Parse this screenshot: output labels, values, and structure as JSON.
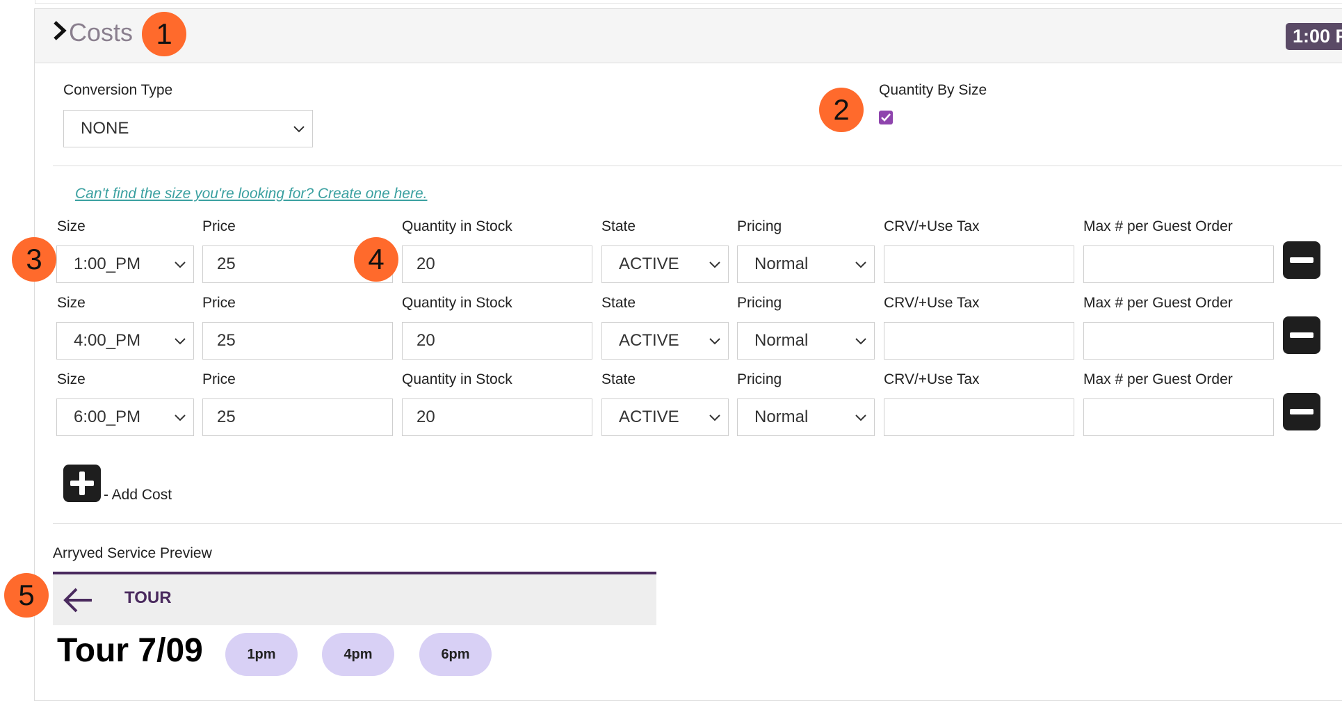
{
  "header": {
    "title": "Costs",
    "time_badge": "1:00 P"
  },
  "markers": [
    "1",
    "2",
    "3",
    "4",
    "5"
  ],
  "conversion": {
    "label": "Conversion Type",
    "value": "NONE"
  },
  "quantity_by_size": {
    "label": "Quantity By Size",
    "checked": true
  },
  "helper_link": "Can't find the size you're looking for? Create one here.",
  "columns": {
    "size": "Size",
    "price": "Price",
    "qty": "Quantity in Stock",
    "state": "State",
    "pricing": "Pricing",
    "crv": "CRV/+Use Tax",
    "max": "Max # per Guest Order"
  },
  "rows": [
    {
      "size": "1:00_PM",
      "price": "25",
      "qty": "20",
      "state": "ACTIVE",
      "pricing": "Normal",
      "crv": "",
      "max": ""
    },
    {
      "size": "4:00_PM",
      "price": "25",
      "qty": "20",
      "state": "ACTIVE",
      "pricing": "Normal",
      "crv": "",
      "max": ""
    },
    {
      "size": "6:00_PM",
      "price": "25",
      "qty": "20",
      "state": "ACTIVE",
      "pricing": "Normal",
      "crv": "",
      "max": ""
    }
  ],
  "add_cost_label": "- Add Cost",
  "preview": {
    "label": "Arryved Service Preview",
    "title": "TOUR",
    "heading": "Tour 7/09",
    "times": [
      "1pm",
      "4pm",
      "6pm"
    ]
  },
  "colors": {
    "accent": "#5a4a66",
    "marker": "#ff6a2c",
    "link": "#3aa0a0",
    "checkbox": "#8e44ad",
    "pill": "#d8d0f5"
  },
  "icons": {
    "collapse": "chevron-right-icon",
    "dropdown": "chevron-down-icon",
    "remove": "minus-icon",
    "add": "plus-icon",
    "back": "arrow-left-icon"
  }
}
